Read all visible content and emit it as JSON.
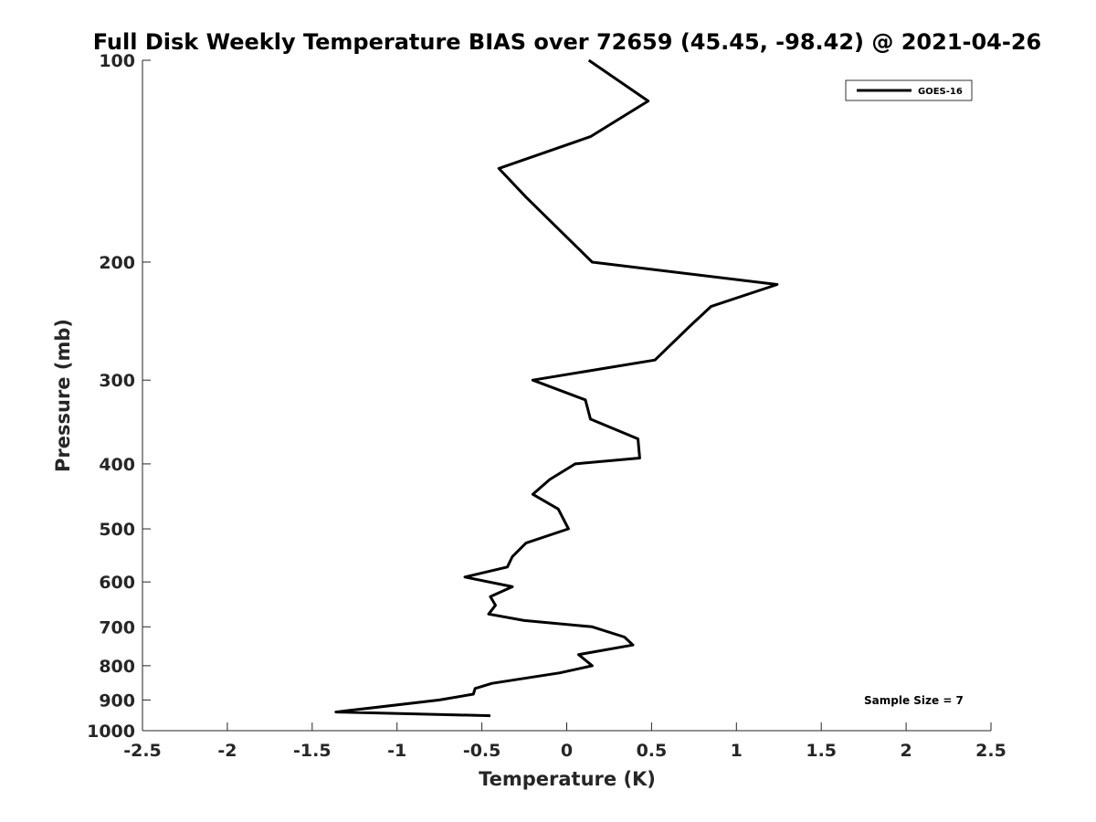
{
  "chart_data": {
    "type": "line",
    "title": "Full Disk Weekly Temperature BIAS over 72659 (45.45, -98.42) @ 2021-04-26",
    "xlabel": "Temperature (K)",
    "ylabel": "Pressure (mb)",
    "xlim": [
      -2.5,
      2.5
    ],
    "ylim": [
      100,
      1000
    ],
    "y_scale": "log",
    "y_direction": "reverse",
    "x_ticks": [
      "-2.5",
      "-2",
      "-1.5",
      "-1",
      "-0.5",
      "0",
      "0.5",
      "1",
      "1.5",
      "2",
      "2.5"
    ],
    "y_ticks": [
      "100",
      "200",
      "300",
      "400",
      "500",
      "600",
      "700",
      "800",
      "900",
      "1000"
    ],
    "grid": false,
    "legend_position": "top-right",
    "annotation": "Sample Size = 7",
    "series": [
      {
        "name": "GOES-16",
        "color": "#000000",
        "points": [
          [
            0.13,
            100
          ],
          [
            0.48,
            115
          ],
          [
            0.14,
            130
          ],
          [
            -0.4,
            145
          ],
          [
            -0.24,
            160
          ],
          [
            0.15,
            200
          ],
          [
            1.24,
            216
          ],
          [
            0.85,
            233
          ],
          [
            0.72,
            250
          ],
          [
            0.52,
            280
          ],
          [
            -0.2,
            300
          ],
          [
            0.11,
            321
          ],
          [
            0.14,
            343
          ],
          [
            0.42,
            367
          ],
          [
            0.43,
            392
          ],
          [
            0.05,
            400
          ],
          [
            -0.1,
            422
          ],
          [
            -0.2,
            444
          ],
          [
            -0.05,
            467
          ],
          [
            0.01,
            500
          ],
          [
            -0.24,
            525
          ],
          [
            -0.32,
            550
          ],
          [
            -0.35,
            570
          ],
          [
            -0.6,
            590
          ],
          [
            -0.32,
            610
          ],
          [
            -0.45,
            631
          ],
          [
            -0.42,
            650
          ],
          [
            -0.46,
            670
          ],
          [
            -0.25,
            685
          ],
          [
            0.15,
            700
          ],
          [
            0.34,
            725
          ],
          [
            0.39,
            745
          ],
          [
            0.07,
            770
          ],
          [
            0.15,
            800
          ],
          [
            -0.04,
            820
          ],
          [
            -0.44,
            850
          ],
          [
            -0.54,
            865
          ],
          [
            -0.55,
            882
          ],
          [
            -0.75,
            900
          ],
          [
            -1.36,
            938
          ],
          [
            -0.45,
            950
          ]
        ]
      }
    ]
  }
}
